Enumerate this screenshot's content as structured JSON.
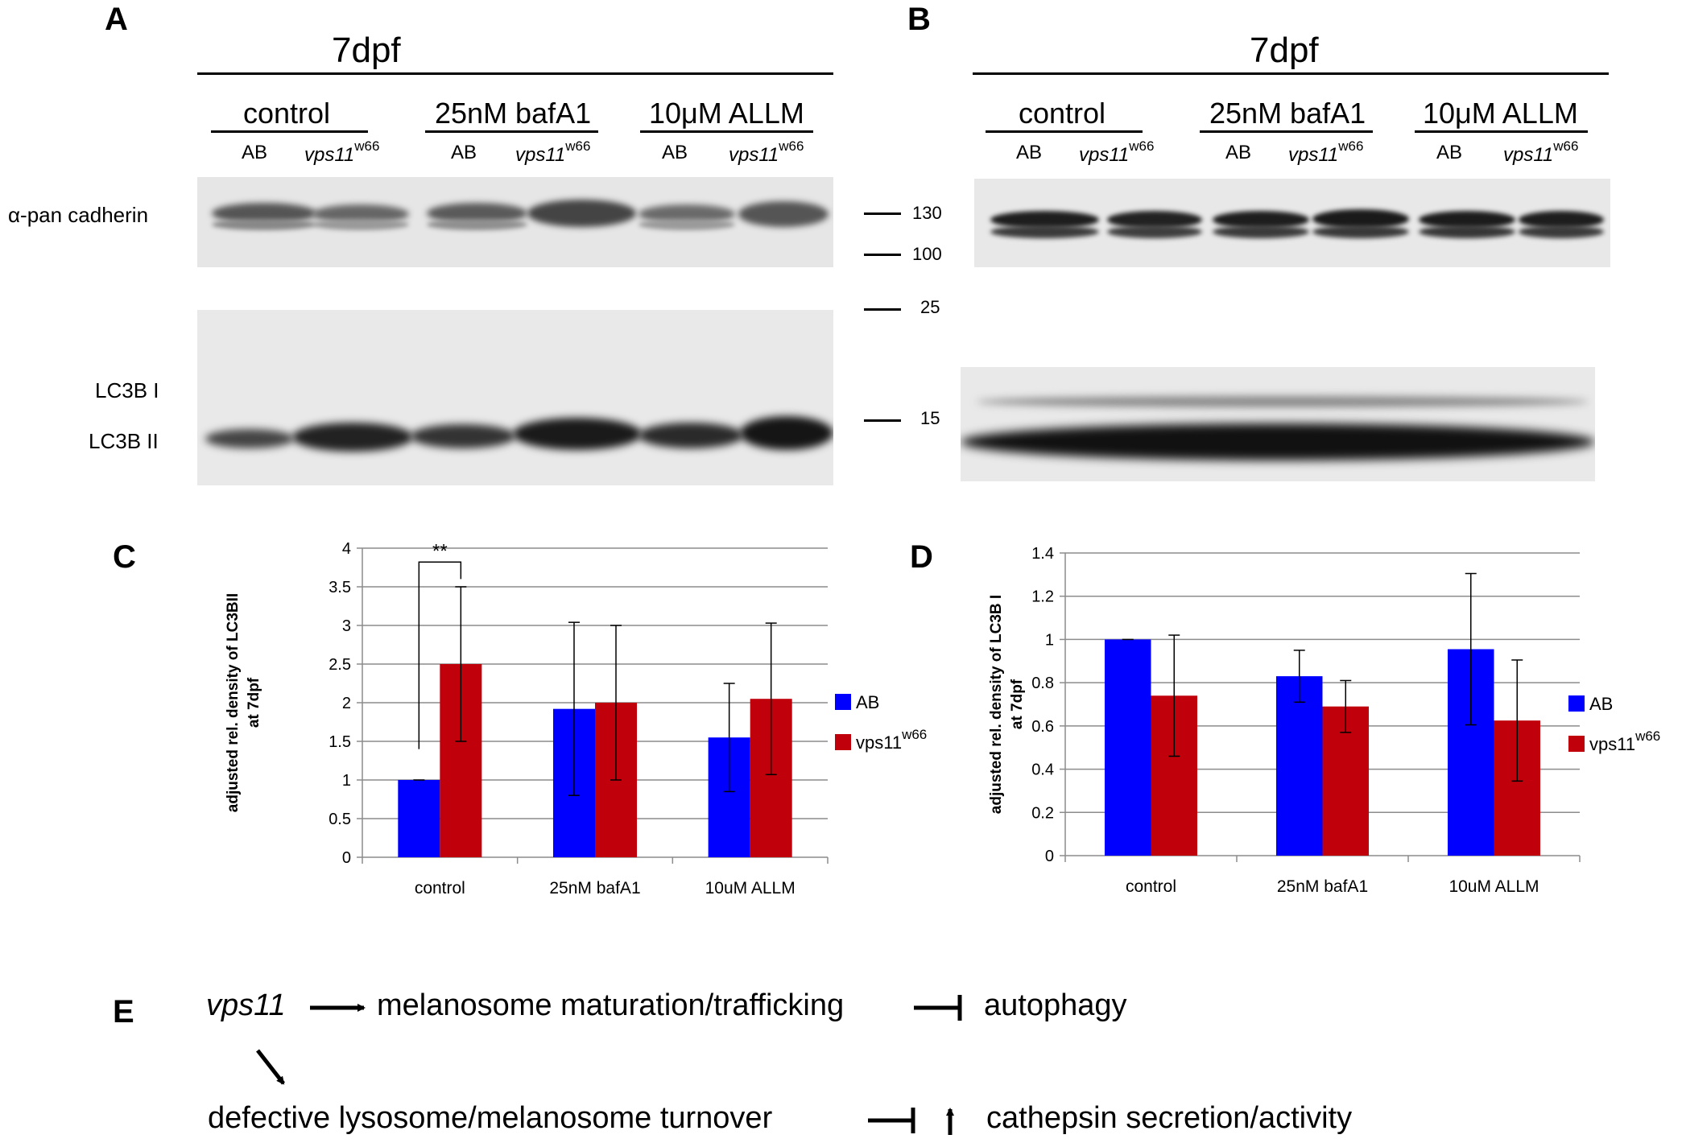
{
  "panels": {
    "a": "A",
    "b": "B",
    "c": "C",
    "d": "D",
    "e": "E"
  },
  "blot": {
    "timepoint": "7dpf",
    "conditions": [
      "control",
      "25nM bafA1",
      "10μM ALLM"
    ],
    "lane_ab": "AB",
    "lane_mut": "vps11",
    "lane_mut_sup": "w66",
    "row_cadherin": "α-pan cadherin",
    "row_lc3b1": "LC3B I",
    "row_lc3b2": "LC3B II",
    "markers": [
      "130",
      "100",
      "25",
      "15"
    ]
  },
  "chart_data": [
    {
      "type": "bar",
      "panel": "C",
      "ylabel_line1": "adjusted rel. density of LC3BII",
      "ylabel_line2": "at 7dpf",
      "categories": [
        "control",
        "25nM bafA1",
        "10uM ALLM"
      ],
      "series": [
        {
          "name": "AB",
          "color": "#0000ff",
          "values": [
            1.0,
            1.92,
            1.55
          ],
          "errors": [
            0.0,
            1.12,
            0.7
          ]
        },
        {
          "name": "vps11",
          "name_sup": "w66",
          "color": "#c0000b",
          "values": [
            2.5,
            2.0,
            2.05
          ],
          "errors": [
            1.0,
            1.0,
            0.98
          ]
        }
      ],
      "ylim": [
        0,
        4
      ],
      "yticks": [
        "0",
        "0.5",
        "1",
        "1.5",
        "2",
        "2.5",
        "3",
        "3.5",
        "4"
      ],
      "grid": true,
      "legend": "right",
      "significance": "**"
    },
    {
      "type": "bar",
      "panel": "D",
      "ylabel_line1": "adjusted rel. density of LC3B I",
      "ylabel_line2": "at 7dpf",
      "categories": [
        "control",
        "25nM bafA1",
        "10uM ALLM"
      ],
      "series": [
        {
          "name": "AB",
          "color": "#0000ff",
          "values": [
            1.0,
            0.83,
            0.955
          ],
          "errors": [
            0.0,
            0.12,
            0.35
          ]
        },
        {
          "name": "vps11",
          "name_sup": "w66",
          "color": "#c0000b",
          "values": [
            0.74,
            0.69,
            0.625
          ],
          "errors": [
            0.28,
            0.12,
            0.28
          ]
        }
      ],
      "ylim": [
        0,
        1.4
      ],
      "yticks": [
        "0",
        "0.2",
        "0.4",
        "0.6",
        "0.8",
        "1",
        "1.2",
        "1.4"
      ],
      "grid": true,
      "legend": "right"
    }
  ],
  "scheme": {
    "gene": "vps11",
    "step1": "melanosome maturation/trafficking",
    "target1": "autophagy",
    "step2": "defective lysosome/melanosome turnover",
    "target2": "cathepsin secretion/activity"
  }
}
